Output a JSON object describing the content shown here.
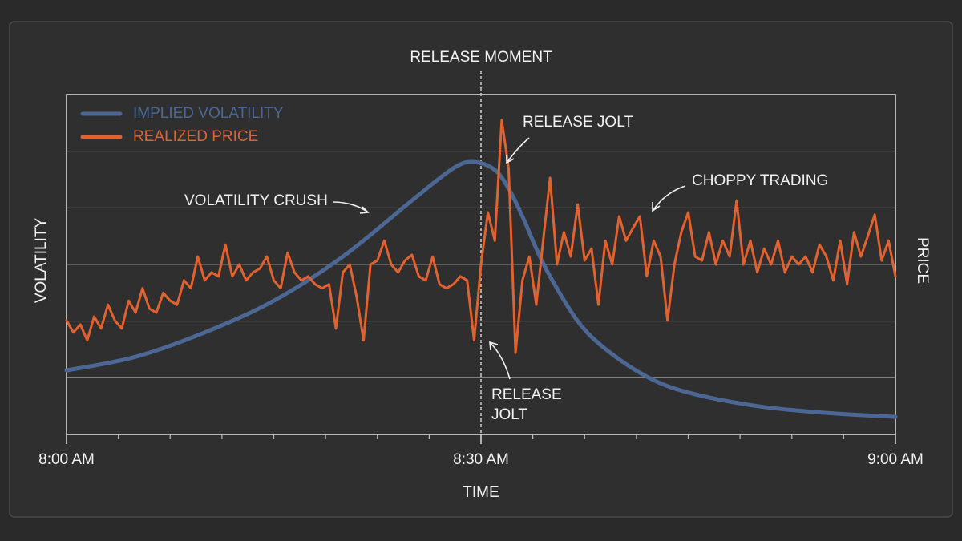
{
  "chart_data": {
    "type": "line",
    "xlabel": "TIME",
    "ylabel": "VOLATILITY",
    "y2label": "PRICE",
    "xlim": [
      0,
      60
    ],
    "xticks": [
      {
        "value": 0,
        "label": "8:00 AM"
      },
      {
        "value": 30,
        "label": "8:30 AM"
      },
      {
        "value": 60,
        "label": "9:00 AM"
      }
    ],
    "xminorticks": [
      3.75,
      7.5,
      11.25,
      15,
      18.75,
      22.5,
      26.25,
      33.75,
      37.5,
      41.25,
      45,
      48.75,
      52.5,
      56.25
    ],
    "ylim": [
      0,
      6
    ],
    "yticks": [
      0,
      1,
      2,
      3,
      4,
      5,
      6
    ],
    "grid": true,
    "legend": "upper left",
    "series": [
      {
        "name": "IMPLIED VOLATILITY",
        "color": "#4d6794",
        "x": [
          0,
          5,
          10,
          15,
          20,
          25,
          28,
          29.5,
          31,
          32,
          33,
          34,
          35,
          37,
          39,
          42,
          45,
          50,
          55,
          60
        ],
        "values": [
          1.13,
          1.37,
          1.8,
          2.36,
          3.14,
          4.13,
          4.7,
          4.81,
          4.67,
          4.34,
          3.85,
          3.28,
          2.79,
          2.0,
          1.51,
          1.02,
          0.74,
          0.5,
          0.38,
          0.31
        ]
      },
      {
        "name": "REALIZED PRICE",
        "color": "#e2622f",
        "x": [
          0,
          0.5,
          1,
          1.5,
          2,
          2.5,
          3,
          3.5,
          4,
          4.5,
          5,
          5.5,
          6,
          6.5,
          7,
          7.5,
          8,
          8.5,
          9,
          9.5,
          10,
          10.5,
          11,
          11.5,
          12,
          12.5,
          13,
          13.5,
          14,
          14.5,
          15,
          15.5,
          16,
          16.5,
          17,
          17.5,
          18,
          18.5,
          19,
          19.5,
          20,
          20.5,
          21,
          21.5,
          22,
          22.5,
          23,
          23.5,
          24,
          24.5,
          25,
          25.5,
          26,
          26.5,
          27,
          27.5,
          28,
          28.5,
          29,
          29.5,
          30,
          30.5,
          31,
          31.5,
          32,
          32.5,
          33,
          33.5,
          34,
          34.5,
          35,
          35.5,
          36,
          36.5,
          37,
          37.5,
          38,
          38.5,
          39,
          39.5,
          40,
          40.5,
          41,
          41.5,
          42,
          42.5,
          43,
          43.5,
          44,
          44.5,
          45,
          45.5,
          46,
          46.5,
          47,
          47.5,
          48,
          48.5,
          49,
          49.5,
          50,
          50.5,
          51,
          51.5,
          52,
          52.5,
          53,
          53.5,
          54,
          54.5,
          55,
          55.5,
          56,
          56.5,
          57,
          57.5,
          58,
          58.5,
          59,
          59.5,
          60
        ],
        "values": [
          2.01,
          1.8,
          1.94,
          1.66,
          2.08,
          1.87,
          2.29,
          2.01,
          1.87,
          2.36,
          2.15,
          2.58,
          2.22,
          2.15,
          2.5,
          2.36,
          2.29,
          2.72,
          2.58,
          3.14,
          2.72,
          2.86,
          2.79,
          3.35,
          2.79,
          3.0,
          2.72,
          2.86,
          2.93,
          3.14,
          2.72,
          2.58,
          3.21,
          2.86,
          2.72,
          2.79,
          2.65,
          2.58,
          2.65,
          1.87,
          2.86,
          3.0,
          2.43,
          1.66,
          3.0,
          3.07,
          3.42,
          3.0,
          2.86,
          3.07,
          3.17,
          2.79,
          2.72,
          3.14,
          2.65,
          2.58,
          2.65,
          2.79,
          2.72,
          1.66,
          3.0,
          3.92,
          3.42,
          5.55,
          4.7,
          1.44,
          2.72,
          3.14,
          2.29,
          3.42,
          4.53,
          3.0,
          3.57,
          3.14,
          4.06,
          3.07,
          3.28,
          2.29,
          3.42,
          3.0,
          3.85,
          3.42,
          3.64,
          3.85,
          2.79,
          3.42,
          3.14,
          2.01,
          3.0,
          3.57,
          3.92,
          3.14,
          3.07,
          3.57,
          3.0,
          3.42,
          3.14,
          4.13,
          3.0,
          3.42,
          2.86,
          3.28,
          3.0,
          3.42,
          2.86,
          3.14,
          3.0,
          3.14,
          2.86,
          3.35,
          3.14,
          2.72,
          3.42,
          2.65,
          3.57,
          3.14,
          3.5,
          3.88,
          3.07,
          3.42,
          2.79
        ]
      }
    ],
    "annotations": [
      {
        "text": "RELEASE MOMENT",
        "x": 30
      },
      {
        "text": "RELEASE JOLT"
      },
      {
        "text": "VOLATILITY CRUSH"
      },
      {
        "text": "CHOPPY TRADING"
      },
      {
        "lines": [
          "RELEASE",
          "JOLT"
        ]
      }
    ]
  }
}
